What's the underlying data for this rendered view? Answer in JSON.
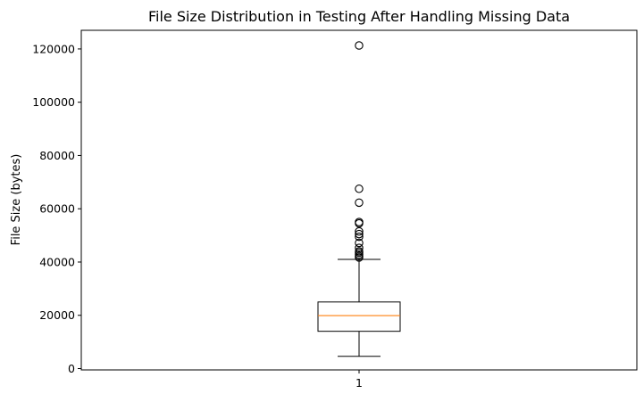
{
  "chart_data": {
    "type": "box",
    "title": "File Size Distribution in Testing After Handling Missing Data",
    "xlabel": "",
    "ylabel": "File Size (bytes)",
    "ylim": [
      -500,
      127000
    ],
    "yticks": [
      0,
      20000,
      40000,
      60000,
      80000,
      100000,
      120000
    ],
    "yticklabels": [
      "0",
      "20000",
      "40000",
      "60000",
      "80000",
      "100000",
      "120000"
    ],
    "categories": [
      "1"
    ],
    "boxes": [
      {
        "category": "1",
        "whisker_low": 4600,
        "q1": 14000,
        "median": 19900,
        "q3": 25000,
        "whisker_high": 41000,
        "outliers": [
          121300,
          67500,
          62300,
          55000,
          54500,
          51500,
          50500,
          49500,
          47200,
          45300,
          44000,
          43500,
          42800,
          42200,
          41700
        ]
      }
    ],
    "colors": {
      "box": "#000000",
      "median": "#ff7f0e",
      "outlier": "#000000"
    },
    "grid": false,
    "legend": "none"
  }
}
